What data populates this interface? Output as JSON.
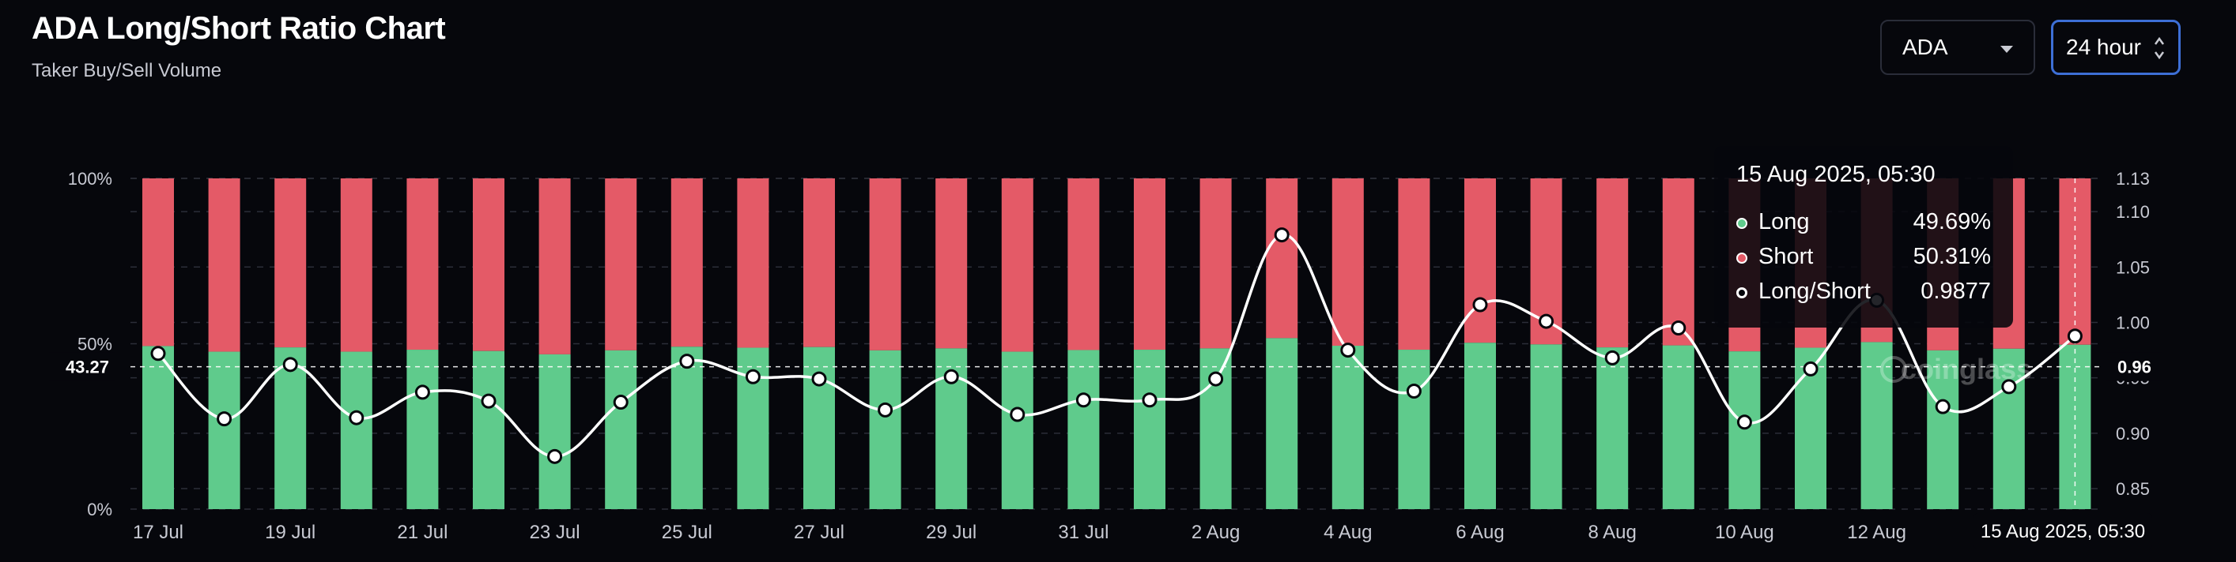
{
  "header": {
    "title": "ADA Long/Short Ratio Chart",
    "subtitle": "Taker Buy/Sell Volume"
  },
  "controls": {
    "asset": "ADA",
    "period": "24 hour"
  },
  "tooltip": {
    "date": "15 Aug 2025, 05:30",
    "rows": [
      {
        "label": "Long",
        "value": "49.69%",
        "color": "#5fcb8c"
      },
      {
        "label": "Short",
        "value": "50.31%",
        "color": "#e45a67"
      },
      {
        "label": "Long/Short",
        "value": "0.9877",
        "color": "#ffffff"
      }
    ]
  },
  "watermark": "coinglass",
  "colors": {
    "long": "#5fcb8c",
    "short": "#e45a67",
    "line": "#ffffff",
    "grid": "#2b2e38",
    "background": "#06070c"
  },
  "chart_data": {
    "type": "bar",
    "stacked": true,
    "categories": [
      "17 Jul",
      "18 Jul",
      "19 Jul",
      "20 Jul",
      "21 Jul",
      "22 Jul",
      "23 Jul",
      "24 Jul",
      "25 Jul",
      "26 Jul",
      "27 Jul",
      "28 Jul",
      "29 Jul",
      "30 Jul",
      "31 Jul",
      "1 Aug",
      "2 Aug",
      "3 Aug",
      "4 Aug",
      "5 Aug",
      "6 Aug",
      "7 Aug",
      "8 Aug",
      "9 Aug",
      "10 Aug",
      "11 Aug",
      "12 Aug",
      "13 Aug",
      "14 Aug",
      "15 Aug"
    ],
    "x_tick_labels": [
      "17 Jul",
      "19 Jul",
      "21 Jul",
      "23 Jul",
      "25 Jul",
      "27 Jul",
      "29 Jul",
      "31 Jul",
      "2 Aug",
      "4 Aug",
      "6 Aug",
      "8 Aug",
      "10 Aug",
      "12 Aug"
    ],
    "series": [
      {
        "name": "Long",
        "axis": "left",
        "unit": "%",
        "values": [
          49.3,
          47.6,
          48.9,
          47.6,
          48.2,
          47.8,
          46.8,
          48.0,
          49.1,
          48.8,
          49.0,
          48.0,
          48.6,
          47.6,
          48.1,
          48.2,
          48.6,
          51.7,
          49.4,
          48.2,
          50.3,
          49.8,
          48.9,
          49.5,
          47.7,
          48.8,
          50.5,
          48.0,
          48.5,
          49.69
        ]
      },
      {
        "name": "Short",
        "axis": "left",
        "unit": "%",
        "values": [
          50.7,
          52.4,
          51.1,
          52.4,
          51.8,
          52.2,
          53.2,
          52.0,
          50.9,
          51.2,
          51.0,
          52.0,
          51.4,
          52.4,
          51.9,
          51.8,
          51.4,
          48.3,
          50.6,
          51.8,
          49.7,
          50.2,
          51.1,
          50.5,
          52.3,
          51.2,
          49.5,
          52.0,
          51.5,
          50.31
        ]
      },
      {
        "name": "Long/Short",
        "axis": "right",
        "type": "line",
        "values": [
          0.972,
          0.913,
          0.962,
          0.914,
          0.937,
          0.929,
          0.879,
          0.928,
          0.965,
          0.951,
          0.949,
          0.921,
          0.951,
          0.917,
          0.93,
          0.93,
          0.949,
          1.079,
          0.975,
          0.938,
          1.016,
          1.001,
          0.968,
          0.995,
          0.91,
          0.958,
          1.02,
          0.924,
          0.942,
          0.9877
        ]
      }
    ],
    "left_axis": {
      "ticks": [
        "100%",
        "50%",
        "0%"
      ],
      "ylim": [
        0,
        100
      ],
      "marker": "43.27"
    },
    "right_axis": {
      "ticks": [
        "1.13",
        "1.10",
        "1.05",
        "1.00",
        "0.95",
        "0.90",
        "0.85"
      ],
      "ylim": [
        0.8315,
        1.13
      ],
      "marker": "0.96"
    },
    "crosshair_label": "15 Aug 2025, 05:30",
    "grid": true
  }
}
